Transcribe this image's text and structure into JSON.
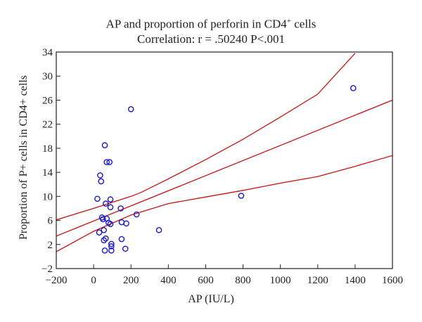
{
  "chart_data": {
    "type": "scatter",
    "title_line1": "AP and proportion of perforin in CD4",
    "title_sup": "+",
    "title_line1_end": " cells",
    "title_line2": "Correlation: r = .50240 P<.001",
    "xlabel": "AP (IU/L)",
    "ylabel": "Proportion of P+ cells in CD4+ cells",
    "xlim": [
      -200,
      1600
    ],
    "ylim": [
      -2,
      34
    ],
    "xticks": [
      -200,
      0,
      200,
      400,
      600,
      800,
      1000,
      1200,
      1400,
      1600
    ],
    "yticks": [
      -2,
      2,
      6,
      10,
      14,
      18,
      22,
      26,
      30,
      34
    ],
    "point_color": "#1a1acc",
    "line_color": "#cc1111",
    "points": [
      {
        "x": 20,
        "y": 9.6
      },
      {
        "x": 30,
        "y": 4.0
      },
      {
        "x": 35,
        "y": 13.5
      },
      {
        "x": 40,
        "y": 12.5
      },
      {
        "x": 45,
        "y": 6.5
      },
      {
        "x": 50,
        "y": 6.2
      },
      {
        "x": 55,
        "y": 4.4
      },
      {
        "x": 55,
        "y": 2.7
      },
      {
        "x": 60,
        "y": 1.0
      },
      {
        "x": 60,
        "y": 18.5
      },
      {
        "x": 65,
        "y": 8.8
      },
      {
        "x": 65,
        "y": 3.0
      },
      {
        "x": 70,
        "y": 15.7
      },
      {
        "x": 70,
        "y": 6.3
      },
      {
        "x": 80,
        "y": 5.6
      },
      {
        "x": 85,
        "y": 15.7
      },
      {
        "x": 90,
        "y": 9.5
      },
      {
        "x": 90,
        "y": 8.2
      },
      {
        "x": 90,
        "y": 5.4
      },
      {
        "x": 95,
        "y": 2.1
      },
      {
        "x": 95,
        "y": 1.7
      },
      {
        "x": 95,
        "y": 1.0
      },
      {
        "x": 145,
        "y": 8.0
      },
      {
        "x": 150,
        "y": 5.7
      },
      {
        "x": 150,
        "y": 2.9
      },
      {
        "x": 170,
        "y": 1.3
      },
      {
        "x": 175,
        "y": 5.5
      },
      {
        "x": 200,
        "y": 24.5
      },
      {
        "x": 230,
        "y": 7.0
      },
      {
        "x": 350,
        "y": 4.4
      },
      {
        "x": 790,
        "y": 10.1
      },
      {
        "x": 1390,
        "y": 28.0
      }
    ],
    "regression": {
      "x": [
        -200,
        1600
      ],
      "y": [
        3.4,
        26.0
      ]
    },
    "ci_upper": {
      "x": [
        -200,
        0,
        200,
        250,
        400,
        600,
        800,
        1000,
        1200,
        1400
      ],
      "y": [
        6.1,
        8.0,
        10.0,
        10.6,
        12.9,
        16.1,
        19.5,
        23.2,
        27.0,
        33.8
      ]
    },
    "ci_lower": {
      "x": [
        -200,
        0,
        200,
        400,
        600,
        800,
        1000,
        1200,
        1400,
        1600
      ],
      "y": [
        0.8,
        4.2,
        6.9,
        8.8,
        9.9,
        11.0,
        12.2,
        13.3,
        15.0,
        16.8
      ]
    }
  }
}
